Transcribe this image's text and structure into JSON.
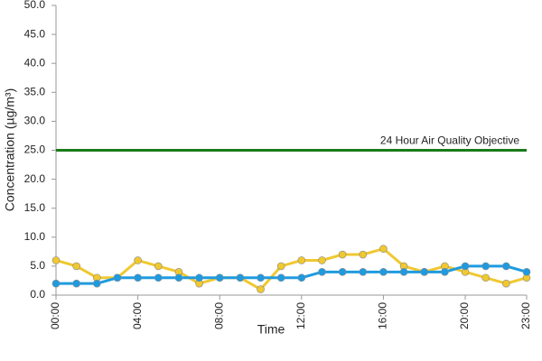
{
  "chart_data": {
    "type": "line",
    "x_label": "Time",
    "y_label": "Concentration (µg/m³)",
    "categories": [
      "00:00",
      null,
      null,
      null,
      "04:00",
      null,
      null,
      null,
      "08:00",
      null,
      null,
      null,
      "12:00",
      null,
      null,
      null,
      "16:00",
      null,
      null,
      null,
      "20:00",
      null,
      null,
      "23:00"
    ],
    "series": [
      {
        "color": "#f0c830",
        "values": [
          6,
          5,
          3,
          3,
          6,
          5,
          4,
          2,
          3,
          3,
          1,
          5,
          6,
          6,
          7,
          7,
          8,
          5,
          4,
          5,
          4,
          3,
          2,
          3
        ]
      },
      {
        "color": "#1e9be0",
        "values": [
          2,
          2,
          2,
          3,
          3,
          3,
          3,
          3,
          3,
          3,
          3,
          3,
          3,
          4,
          4,
          4,
          4,
          4,
          4,
          4,
          5,
          5,
          5,
          4
        ]
      }
    ],
    "reference_line": {
      "value": 25,
      "label": "24 Hour Air Quality Objective",
      "color": "#1a7a1a"
    },
    "ylim": [
      0,
      50
    ],
    "yticks": [
      {
        "value": 0,
        "label": "0.0"
      },
      {
        "value": 5,
        "label": "5.0"
      },
      {
        "value": 10,
        "label": "10.0"
      },
      {
        "value": 15,
        "label": "15.0"
      },
      {
        "value": 20,
        "label": "20.0"
      },
      {
        "value": 25,
        "label": "25.0"
      },
      {
        "value": 30,
        "label": "30.0"
      },
      {
        "value": 35,
        "label": "35.0"
      },
      {
        "value": 40,
        "label": "40.0"
      },
      {
        "value": 45,
        "label": "45.0"
      },
      {
        "value": 50,
        "label": "50.0"
      }
    ],
    "grid": false
  }
}
